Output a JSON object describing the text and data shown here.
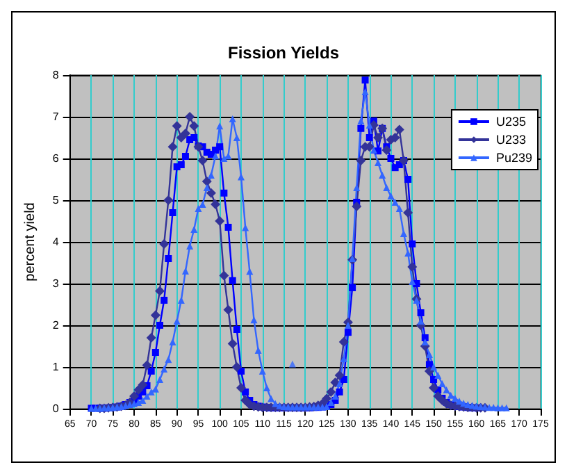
{
  "chart_data": {
    "type": "line",
    "title": "Fission Yields",
    "ylabel": "percent yield",
    "xlim": [
      65,
      175
    ],
    "xticks": [
      65,
      70,
      75,
      80,
      85,
      90,
      95,
      100,
      105,
      110,
      115,
      120,
      125,
      130,
      135,
      140,
      145,
      150,
      155,
      160,
      165,
      170,
      175
    ],
    "ylim": [
      0,
      8
    ],
    "yticks": [
      0,
      1,
      2,
      3,
      4,
      5,
      6,
      7,
      8
    ],
    "grid": true,
    "legend": "top right",
    "series": [
      {
        "name": "U235",
        "color": "#0000ff",
        "marker": "square",
        "x": [
          70,
          71,
          72,
          73,
          74,
          75,
          76,
          77,
          78,
          79,
          80,
          81,
          82,
          83,
          84,
          85,
          86,
          87,
          88,
          89,
          90,
          91,
          92,
          93,
          94,
          95,
          96,
          97,
          98,
          99,
          100,
          101,
          102,
          103,
          104,
          105,
          106,
          107,
          108,
          109,
          110,
          111,
          112,
          113,
          114,
          115,
          116,
          117,
          118,
          119,
          120,
          121,
          122,
          123,
          124,
          125,
          126,
          127,
          128,
          129,
          130,
          131,
          132,
          133,
          134,
          135,
          136,
          137,
          138,
          139,
          140,
          141,
          142,
          143,
          144,
          145,
          146,
          147,
          148,
          149,
          150,
          151,
          152,
          153,
          154,
          155,
          156,
          157,
          158,
          159,
          160
        ],
        "values": [
          0.01,
          0.01,
          0.01,
          0.01,
          0.02,
          0.03,
          0.04,
          0.06,
          0.1,
          0.15,
          0.2,
          0.3,
          0.4,
          0.55,
          0.9,
          1.35,
          2.0,
          2.6,
          3.6,
          4.7,
          5.8,
          5.85,
          6.05,
          6.45,
          6.5,
          6.3,
          6.28,
          6.15,
          6.1,
          6.2,
          6.28,
          5.17,
          4.35,
          3.07,
          1.9,
          0.9,
          0.4,
          0.2,
          0.1,
          0.06,
          0.04,
          0.03,
          0.02,
          0.02,
          0.02,
          0.02,
          0.02,
          0.02,
          0.02,
          0.02,
          0.02,
          0.02,
          0.03,
          0.03,
          0.04,
          0.05,
          0.1,
          0.2,
          0.4,
          0.7,
          1.83,
          2.9,
          4.95,
          6.72,
          7.88,
          6.5,
          6.9,
          6.18,
          6.72,
          6.28,
          6.0,
          5.78,
          5.85,
          5.95,
          5.5,
          3.95,
          3.0,
          2.3,
          1.7,
          1.06,
          0.7,
          0.45,
          0.25,
          0.15,
          0.1,
          0.07,
          0.05,
          0.04,
          0.03,
          0.02,
          0.02
        ]
      },
      {
        "name": "U233",
        "color": "#333399",
        "marker": "diamond",
        "x": [
          72,
          73,
          74,
          75,
          76,
          77,
          78,
          79,
          80,
          81,
          82,
          83,
          84,
          85,
          86,
          87,
          88,
          89,
          90,
          91,
          92,
          93,
          94,
          95,
          96,
          97,
          98,
          99,
          100,
          101,
          102,
          103,
          104,
          105,
          106,
          107,
          108,
          109,
          110,
          111,
          112,
          113,
          114,
          115,
          116,
          117,
          118,
          119,
          120,
          121,
          122,
          123,
          124,
          125,
          126,
          127,
          128,
          129,
          130,
          131,
          132,
          133,
          134,
          135,
          136,
          137,
          138,
          139,
          140,
          141,
          142,
          143,
          144,
          145,
          146,
          147,
          148,
          149,
          150,
          151,
          152,
          153,
          154,
          155,
          156,
          157,
          158,
          159,
          160,
          161,
          162
        ],
        "values": [
          0.01,
          0.01,
          0.02,
          0.03,
          0.04,
          0.06,
          0.08,
          0.15,
          0.3,
          0.45,
          0.57,
          1.04,
          1.7,
          2.24,
          2.82,
          3.95,
          5.0,
          6.28,
          6.78,
          6.5,
          6.6,
          7.0,
          6.78,
          6.28,
          5.95,
          5.45,
          5.17,
          4.9,
          4.5,
          3.19,
          2.37,
          1.56,
          1.0,
          0.5,
          0.2,
          0.1,
          0.06,
          0.04,
          0.03,
          0.03,
          0.03,
          0.03,
          0.03,
          0.03,
          0.03,
          0.03,
          0.03,
          0.03,
          0.03,
          0.04,
          0.05,
          0.08,
          0.12,
          0.24,
          0.4,
          0.63,
          0.8,
          1.6,
          2.07,
          3.57,
          4.85,
          5.95,
          6.28,
          6.28,
          6.8,
          6.5,
          6.72,
          6.2,
          6.45,
          6.5,
          6.69,
          5.95,
          4.7,
          3.4,
          2.63,
          2.0,
          1.5,
          0.9,
          0.5,
          0.3,
          0.2,
          0.12,
          0.08,
          0.06,
          0.05,
          0.04,
          0.03,
          0.03,
          0.02,
          0.02,
          0.02
        ]
      },
      {
        "name": "Pu239",
        "color": "#3366ff",
        "marker": "triangle",
        "x": [
          70,
          71,
          72,
          73,
          74,
          75,
          76,
          77,
          78,
          79,
          80,
          81,
          82,
          83,
          84,
          85,
          86,
          87,
          88,
          89,
          90,
          91,
          92,
          93,
          94,
          95,
          96,
          97,
          98,
          99,
          100,
          101,
          102,
          103,
          104,
          105,
          106,
          107,
          108,
          109,
          110,
          111,
          112,
          113,
          114,
          115,
          116,
          117,
          118,
          119,
          120,
          121,
          122,
          123,
          124,
          125,
          126,
          127,
          128,
          129,
          130,
          131,
          132,
          133,
          134,
          135,
          136,
          137,
          138,
          139,
          140,
          141,
          142,
          143,
          144,
          145,
          146,
          147,
          148,
          149,
          150,
          151,
          152,
          153,
          154,
          155,
          156,
          157,
          158,
          159,
          160,
          161,
          162,
          163,
          164,
          165,
          166,
          167
        ],
        "values": [
          0.01,
          0.01,
          0.01,
          0.02,
          0.02,
          0.03,
          0.04,
          0.05,
          0.07,
          0.1,
          0.12,
          0.15,
          0.2,
          0.3,
          0.4,
          0.47,
          0.7,
          0.95,
          1.18,
          1.6,
          2.1,
          2.6,
          3.3,
          3.9,
          4.3,
          4.8,
          4.9,
          5.3,
          5.6,
          6.06,
          6.78,
          6.0,
          6.06,
          6.95,
          6.5,
          5.56,
          4.34,
          3.29,
          2.13,
          1.4,
          0.9,
          0.5,
          0.24,
          0.12,
          0.07,
          0.05,
          0.04,
          0.04,
          0.04,
          0.04,
          0.04,
          0.04,
          0.04,
          0.04,
          0.04,
          0.05,
          0.15,
          0.3,
          0.6,
          1.2,
          2.0,
          3.6,
          5.3,
          6.9,
          7.6,
          6.8,
          6.2,
          5.9,
          5.6,
          5.3,
          5.1,
          4.95,
          4.8,
          4.2,
          3.73,
          3.05,
          2.6,
          2.1,
          1.6,
          1.3,
          1.0,
          0.8,
          0.6,
          0.45,
          0.32,
          0.25,
          0.18,
          0.13,
          0.1,
          0.08,
          0.06,
          0.05,
          0.04,
          0.03,
          0.03,
          0.02,
          0.02,
          0.02
        ]
      },
      {
        "type": "scatter",
        "color": "#3366ff",
        "marker": "triangle",
        "x": [
          117
        ],
        "values": [
          1.07
        ]
      }
    ]
  }
}
